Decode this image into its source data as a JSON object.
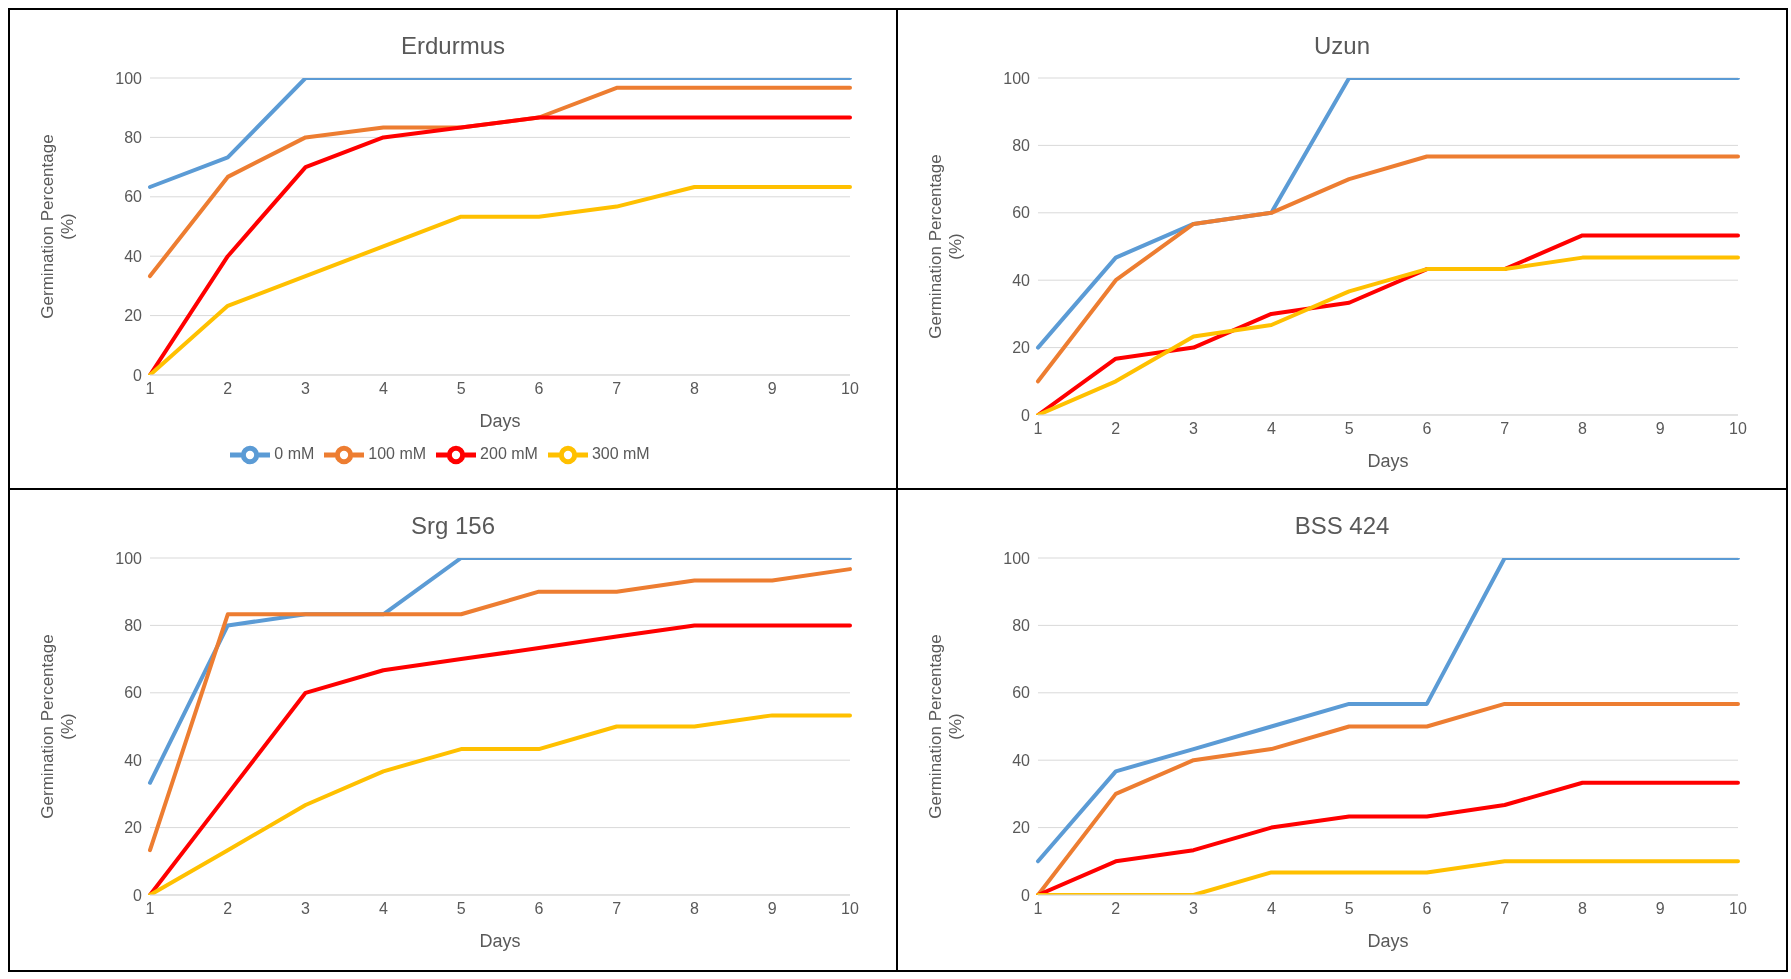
{
  "chart_data": [
    {
      "type": "line",
      "title": "Erdurmus",
      "xlabel": "Days",
      "ylabel": "Germination Percentage (%)",
      "categories": [
        "1",
        "2",
        "3",
        "4",
        "5",
        "6",
        "7",
        "8",
        "9",
        "10"
      ],
      "ylim": [
        0,
        100
      ],
      "yticks": [
        0,
        20,
        40,
        60,
        80,
        100
      ],
      "grid": "y",
      "legend": "bottom",
      "marker": "none",
      "line_style": "solid",
      "series": [
        {
          "name": "0 mM",
          "color": "#5b9bd5",
          "values": [
            63.3,
            73.3,
            100,
            100,
            100,
            100,
            100,
            100,
            100,
            100
          ]
        },
        {
          "name": "100 mM",
          "color": "#ed7d31",
          "values": [
            33.3,
            66.7,
            80,
            83.3,
            83.3,
            86.7,
            96.7,
            96.7,
            96.7,
            96.7
          ]
        },
        {
          "name": "200 mM",
          "color": "#ff0000",
          "values": [
            0,
            40,
            70,
            80,
            83.3,
            86.7,
            86.7,
            86.7,
            86.7,
            86.7
          ]
        },
        {
          "name": "300 mM",
          "color": "#ffc000",
          "values": [
            0,
            23.3,
            33.3,
            43.3,
            53.3,
            53.3,
            56.7,
            63.3,
            63.3,
            63.3
          ]
        }
      ]
    },
    {
      "type": "line",
      "title": "Uzun",
      "xlabel": "Days",
      "ylabel": "Germination Percentage (%)",
      "categories": [
        "1",
        "2",
        "3",
        "4",
        "5",
        "6",
        "7",
        "8",
        "9",
        "10"
      ],
      "ylim": [
        0,
        100
      ],
      "yticks": [
        0,
        20,
        40,
        60,
        80,
        100
      ],
      "grid": "y",
      "marker": "none",
      "line_style": "solid",
      "series": [
        {
          "color": "#5b9bd5",
          "values": [
            20,
            46.7,
            56.7,
            60,
            100,
            100,
            100,
            100,
            100,
            100
          ]
        },
        {
          "color": "#ed7d31",
          "values": [
            10,
            40,
            56.7,
            60,
            70,
            76.7,
            76.7,
            76.7,
            76.7,
            76.7
          ]
        },
        {
          "color": "#ff0000",
          "values": [
            0,
            16.7,
            20,
            30,
            33.3,
            43.3,
            43.3,
            53.3,
            53.3,
            53.3
          ]
        },
        {
          "color": "#ffc000",
          "values": [
            0,
            10,
            23.3,
            26.7,
            36.7,
            43.3,
            43.3,
            46.7,
            46.7,
            46.7
          ]
        }
      ]
    },
    {
      "type": "line",
      "title": "Srg 156",
      "xlabel": "Days",
      "ylabel": "Germination Percentage (%)",
      "categories": [
        "1",
        "2",
        "3",
        "4",
        "5",
        "6",
        "7",
        "8",
        "9",
        "10"
      ],
      "ylim": [
        0,
        100
      ],
      "yticks": [
        0,
        20,
        40,
        60,
        80,
        100
      ],
      "grid": "y",
      "marker": "none",
      "line_style": "solid",
      "series": [
        {
          "color": "#5b9bd5",
          "values": [
            33.3,
            80,
            83.3,
            83.3,
            100,
            100,
            100,
            100,
            100,
            100
          ]
        },
        {
          "color": "#ed7d31",
          "values": [
            13.3,
            83.3,
            83.3,
            83.3,
            83.3,
            90,
            90,
            93.3,
            93.3,
            96.7
          ]
        },
        {
          "color": "#ff0000",
          "values": [
            0,
            30,
            60,
            66.7,
            70,
            73.3,
            76.7,
            80,
            80,
            80
          ]
        },
        {
          "color": "#ffc000",
          "values": [
            0,
            13.3,
            26.7,
            36.7,
            43.3,
            43.3,
            50,
            50,
            53.3,
            53.3
          ]
        }
      ]
    },
    {
      "type": "line",
      "title": "BSS 424",
      "xlabel": "Days",
      "ylabel": "Germination Percentage (%)",
      "categories": [
        "1",
        "2",
        "3",
        "4",
        "5",
        "6",
        "7",
        "8",
        "9",
        "10"
      ],
      "ylim": [
        0,
        100
      ],
      "yticks": [
        0,
        20,
        40,
        60,
        80,
        100
      ],
      "grid": "y",
      "marker": "none",
      "line_style": "solid",
      "series": [
        {
          "color": "#5b9bd5",
          "values": [
            10,
            36.7,
            43.3,
            50,
            56.7,
            56.7,
            100,
            100,
            100,
            100
          ]
        },
        {
          "color": "#ed7d31",
          "values": [
            0,
            30,
            40,
            43.3,
            50,
            50,
            56.7,
            56.7,
            56.7,
            56.7
          ]
        },
        {
          "color": "#ff0000",
          "values": [
            0,
            10,
            13.3,
            20,
            23.3,
            23.3,
            26.7,
            33.3,
            33.3,
            33.3
          ]
        },
        {
          "color": "#ffc000",
          "values": [
            0,
            0,
            0,
            6.7,
            6.7,
            6.7,
            10,
            10,
            10,
            10
          ]
        }
      ]
    }
  ]
}
